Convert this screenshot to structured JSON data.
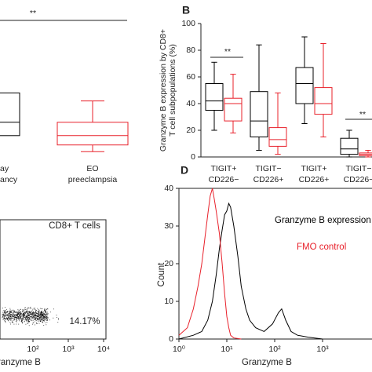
{
  "chart_data": [
    {
      "type": "box",
      "categories": [
        [
          "ay",
          "ancy"
        ],
        [
          "EO",
          "preeclampsia"
        ]
      ],
      "values": [
        {
          "q1": 16,
          "median": 26,
          "q3": 48
        },
        {
          "min": 4,
          "q1": 9,
          "median": 16,
          "q3": 26,
          "max": 42
        }
      ],
      "colors": [
        "#000000",
        "#e8202a"
      ],
      "ylim": [
        0,
        100
      ],
      "annotations": [
        {
          "text": "**"
        }
      ]
    },
    {
      "type": "box",
      "label": "B",
      "y_label": [
        "Granzyme B expression by CD8+",
        "T cell subpopulations (%)"
      ],
      "categories": [
        [
          "TIGIT+",
          "CD226−"
        ],
        [
          "TIGIT−",
          "CD226+"
        ],
        [
          "TIGIT+",
          "CD226+"
        ],
        [
          "TIGIT−",
          "CD226−"
        ]
      ],
      "series": [
        {
          "color": "#000000",
          "values": [
            {
              "min": 20,
              "q1": 35,
              "median": 42,
              "q3": 55,
              "max": 71
            },
            {
              "min": 5,
              "q1": 15,
              "median": 27,
              "q3": 49,
              "max": 84
            },
            {
              "min": 25,
              "q1": 40,
              "median": 55,
              "q3": 67,
              "max": 90
            },
            {
              "min": 0,
              "q1": 2,
              "median": 6,
              "q3": 14,
              "max": 20
            }
          ]
        },
        {
          "color": "#e8202a",
          "values": [
            {
              "min": 18,
              "q1": 27,
              "median": 40,
              "q3": 44,
              "max": 62
            },
            {
              "min": 2,
              "q1": 8,
              "median": 13,
              "q3": 22,
              "max": 48
            },
            {
              "min": 15,
              "q1": 32,
              "median": 40,
              "q3": 52,
              "max": 85
            },
            {
              "min": 0,
              "q1": 1,
              "median": 2,
              "q3": 3,
              "max": 5
            }
          ]
        }
      ],
      "ylim": [
        0,
        100
      ],
      "yticks": [
        0,
        20,
        40,
        60,
        80,
        100
      ],
      "annotations": [
        {
          "text": "**"
        },
        {
          "text": "**"
        }
      ]
    },
    {
      "type": "flow",
      "title": "CD8+ T cells",
      "annotation": "14.17%",
      "x_label": "Granzyme B",
      "log_x": true,
      "xlim": [
        10,
        10000
      ],
      "xticks": [
        {
          "value": 100,
          "label": "10²"
        },
        {
          "value": 1000,
          "label": "10³"
        },
        {
          "value": 10000,
          "label": "10⁴"
        }
      ]
    },
    {
      "type": "line",
      "label": "D",
      "x_label": "Granzyme B",
      "y_label": "Count",
      "log_x": true,
      "xlim": [
        1,
        10000
      ],
      "ylim": [
        0,
        40
      ],
      "xticks": [
        {
          "value": 1,
          "label": "10⁰"
        },
        {
          "value": 10,
          "label": "10¹"
        },
        {
          "value": 100,
          "label": "10²"
        },
        {
          "value": 1000,
          "label": "10³"
        }
      ],
      "yticks": [
        0,
        10,
        20,
        30,
        40
      ],
      "series": [
        {
          "name": "Granzyme B expression",
          "color": "#000000",
          "x": [
            1,
            2,
            3,
            4,
            5,
            6,
            7,
            8,
            9,
            10,
            11,
            12,
            14,
            17,
            20,
            25,
            30,
            40,
            60,
            90,
            120,
            140,
            170,
            220,
            300,
            500,
            1000
          ],
          "values": [
            0,
            1,
            2,
            5,
            10,
            17,
            24,
            29,
            33,
            34,
            36,
            35,
            30,
            22,
            14,
            8,
            5,
            3,
            2,
            4,
            7,
            8,
            5,
            2,
            1,
            0.5,
            0
          ]
        },
        {
          "name": "FMO control",
          "color": "#e8202a",
          "x": [
            1,
            1.5,
            2,
            2.5,
            3,
            3.5,
            4,
            4.5,
            5,
            5.5,
            6,
            7,
            8,
            9,
            10,
            11,
            12,
            14,
            20
          ],
          "values": [
            1,
            3,
            8,
            14,
            20,
            27,
            33,
            38,
            40,
            37,
            34,
            28,
            20,
            12,
            6,
            3,
            1,
            0.3,
            0
          ]
        }
      ]
    }
  ]
}
